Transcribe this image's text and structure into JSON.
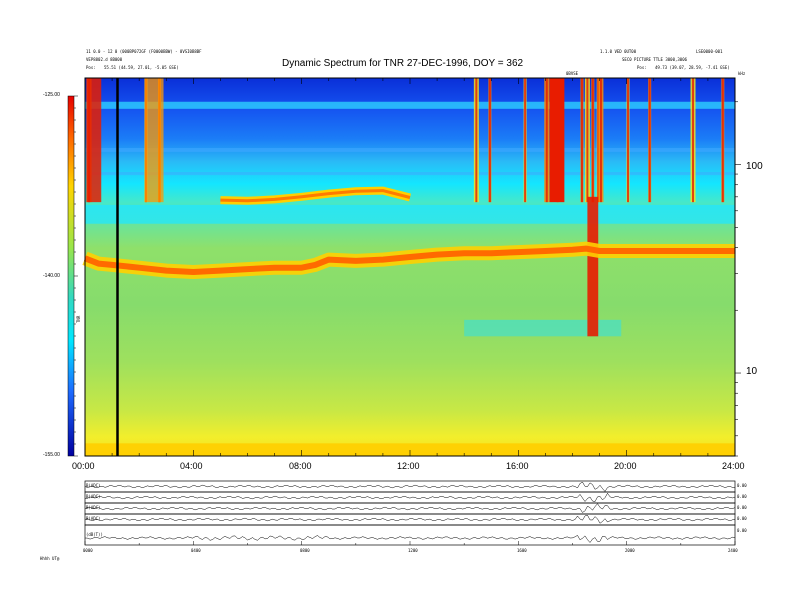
{
  "header": {
    "title": "Dynamic Spectrum for TNR 27-DEC-1996, DOY = 362",
    "left_line1": "11 0.0 - 12 0 (000BP072GF (F0000BBW) - 0VSI0B8BF",
    "left_line2": "VEP8802.d 8B000",
    "left_pos_label": "Pos:",
    "left_pos_value": "55.51 (44.59, 27.01, -5.05 GSE)",
    "right_line1": "1.1.0 VED 0UT00",
    "right_line2": "SEC0 PICTURE TTLE 3000,3006",
    "right_corner": "LSE0000-001",
    "right_pos_label": "Pos:",
    "right_pos_value": "49.73 (39.07, 28.59, -7.41 GSE)",
    "marker_label": "0BVSE"
  },
  "colorbar": {
    "axis_label": "TNR",
    "unit": "dB",
    "ticks": [
      "-125.00",
      "-140.00",
      "-155.00"
    ]
  },
  "chart_data": {
    "type": "heatmap",
    "title": "Dynamic Spectrum for TNR 27-DEC-1996, DOY = 362",
    "x_unit": "UT hours",
    "xlim": [
      0,
      24
    ],
    "x_ticks": [
      "00:00",
      "04:00",
      "08:00",
      "12:00",
      "16:00",
      "20:00",
      "24:00"
    ],
    "y_unit": "kHz",
    "y_scale": "log",
    "ylim": [
      4,
      260
    ],
    "y_ticks": [
      "10",
      "100"
    ],
    "color_range_dB": [
      -155,
      -125
    ],
    "plasma_line": {
      "x": [
        0.0,
        0.5,
        1.0,
        2.0,
        3.0,
        4.0,
        5.0,
        6.0,
        7.0,
        8.0,
        8.5,
        9.0,
        10.0,
        11.0,
        12.0,
        13.0,
        14.0,
        15.0,
        16.0,
        17.0,
        18.0,
        18.5,
        19.0,
        20.0,
        21.0,
        22.0,
        23.0,
        24.0
      ],
      "y": [
        35.5,
        33.5,
        33.0,
        32.0,
        31.0,
        30.5,
        31.0,
        31.5,
        32.0,
        32.0,
        33.0,
        35.0,
        34.5,
        35.0,
        36.0,
        37.0,
        37.5,
        37.5,
        38.0,
        38.5,
        39.0,
        39.5,
        38.5,
        38.5,
        38.5,
        38.5,
        38.5,
        38.5
      ]
    },
    "harmonic_line": {
      "x": [
        5.0,
        6.0,
        7.0,
        8.0,
        9.0,
        10.0,
        11.0,
        12.0
      ],
      "y": [
        67.5,
        67.0,
        68.0,
        70.0,
        72.5,
        74.5,
        75.0,
        69.5
      ]
    },
    "bursts_hours": [
      0.15,
      2.25,
      2.75,
      14.45,
      14.95,
      16.25,
      17.05,
      17.45,
      18.35,
      18.55,
      18.75,
      18.95,
      19.05,
      20.05,
      20.85,
      22.45,
      23.55
    ],
    "marker_hours": [
      1.2
    ]
  },
  "panels": {
    "labels": [
      "B(ADC)",
      "B(ADC)",
      "B(ADC)",
      "B(ADC)",
      "(dB(T))"
    ],
    "right_labels": [
      "0.00",
      "0.00",
      "0.00",
      "0.00",
      "0.00"
    ],
    "bottom_ticks": [
      "0000",
      "0400",
      "0800",
      "1200",
      "1600",
      "2000",
      "2400"
    ],
    "bottom_label": "Hhhh    UT@"
  },
  "colors": {
    "frame": "#000000",
    "background": "#ffffff"
  }
}
